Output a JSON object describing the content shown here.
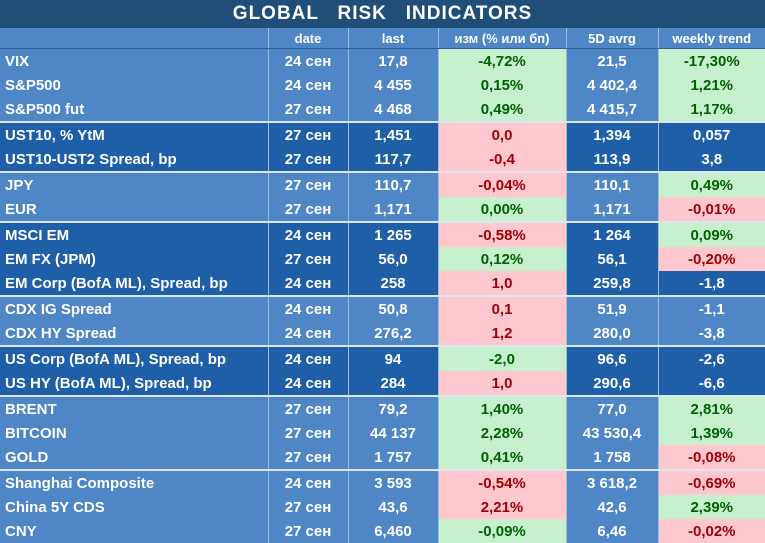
{
  "title": "GLOBAL   RISK   INDICATORS",
  "headers": {
    "name": "",
    "date": "date",
    "last": "last",
    "change": "изм (% или бп)",
    "avg5d": "5D avrg",
    "weekly": "weekly trend"
  },
  "colors": {
    "positive_bg": "#c6efce",
    "positive_text": "#006100",
    "negative_bg": "#ffc7ce",
    "negative_text": "#9c0006",
    "title_bg": "#1f4e79"
  },
  "rows": [
    {
      "name": "VIX",
      "date": "24 сен",
      "last": "17,8",
      "change": "-4,72%",
      "change_sign": "pos",
      "avg5d": "21,5",
      "weekly": "-17,30%",
      "weekly_sign": "pos",
      "group": 1
    },
    {
      "name": "S&P500",
      "date": "24 сен",
      "last": "4 455",
      "change": "0,15%",
      "change_sign": "pos",
      "avg5d": "4 402,4",
      "weekly": "1,21%",
      "weekly_sign": "pos",
      "group": 1
    },
    {
      "name": "S&P500 fut",
      "date": "27 сен",
      "last": "4 468",
      "change": "0,49%",
      "change_sign": "pos",
      "avg5d": "4 415,7",
      "weekly": "1,17%",
      "weekly_sign": "pos",
      "group": 1
    },
    {
      "name": "UST10, % YtM",
      "date": "27 сен",
      "last": "1,451",
      "change": "0,0",
      "change_sign": "neg",
      "avg5d": "1,394",
      "weekly": "0,057",
      "weekly_sign": "none",
      "group": 2
    },
    {
      "name": "UST10-UST2 Spread, bp",
      "date": "27 сен",
      "last": "117,7",
      "change": "-0,4",
      "change_sign": "neg",
      "avg5d": "113,9",
      "weekly": "3,8",
      "weekly_sign": "none",
      "group": 2
    },
    {
      "name": "JPY",
      "date": "27 сен",
      "last": "110,7",
      "change": "-0,04%",
      "change_sign": "neg",
      "avg5d": "110,1",
      "weekly": "0,49%",
      "weekly_sign": "pos",
      "group": 1
    },
    {
      "name": "EUR",
      "date": "27 сен",
      "last": "1,171",
      "change": "0,00%",
      "change_sign": "pos",
      "avg5d": "1,171",
      "weekly": "-0,01%",
      "weekly_sign": "neg",
      "group": 1
    },
    {
      "name": "MSCI EM",
      "date": "24 сен",
      "last": "1 265",
      "change": "-0,58%",
      "change_sign": "neg",
      "avg5d": "1 264",
      "weekly": "0,09%",
      "weekly_sign": "pos",
      "group": 2
    },
    {
      "name": "EM FX (JPM)",
      "date": "27 сен",
      "last": "56,0",
      "change": "0,12%",
      "change_sign": "pos",
      "avg5d": "56,1",
      "weekly": "-0,20%",
      "weekly_sign": "neg",
      "group": 2
    },
    {
      "name": "EM Corp (BofA ML), Spread, bp",
      "date": "24 сен",
      "last": "258",
      "change": "1,0",
      "change_sign": "neg",
      "avg5d": "259,8",
      "weekly": "-1,8",
      "weekly_sign": "none",
      "group": 2
    },
    {
      "name": "CDX IG Spread",
      "date": "24 сен",
      "last": "50,8",
      "change": "0,1",
      "change_sign": "neg",
      "avg5d": "51,9",
      "weekly": "-1,1",
      "weekly_sign": "none",
      "group": 1
    },
    {
      "name": "CDX HY Spread",
      "date": "24 сен",
      "last": "276,2",
      "change": "1,2",
      "change_sign": "neg",
      "avg5d": "280,0",
      "weekly": "-3,8",
      "weekly_sign": "none",
      "group": 1
    },
    {
      "name": "US Corp (BofA ML), Spread, bp",
      "date": "24 сен",
      "last": "94",
      "change": "-2,0",
      "change_sign": "pos",
      "avg5d": "96,6",
      "weekly": "-2,6",
      "weekly_sign": "none",
      "group": 2
    },
    {
      "name": "US HY (BofA ML), Spread, bp",
      "date": "24 сен",
      "last": "284",
      "change": "1,0",
      "change_sign": "neg",
      "avg5d": "290,6",
      "weekly": "-6,6",
      "weekly_sign": "none",
      "group": 2
    },
    {
      "name": "BRENT",
      "date": "27 сен",
      "last": "79,2",
      "change": "1,40%",
      "change_sign": "pos",
      "avg5d": "77,0",
      "weekly": "2,81%",
      "weekly_sign": "pos",
      "group": 1
    },
    {
      "name": "BITCOIN",
      "date": "27 сен",
      "last": "44 137",
      "change": "2,28%",
      "change_sign": "pos",
      "avg5d": "43 530,4",
      "weekly": "1,39%",
      "weekly_sign": "pos",
      "group": 1
    },
    {
      "name": "GOLD",
      "date": "27 сен",
      "last": "1 757",
      "change": "0,41%",
      "change_sign": "pos",
      "avg5d": "1 758",
      "weekly": "-0,08%",
      "weekly_sign": "neg",
      "group": 1
    },
    {
      "name": "Shanghai Composite",
      "date": "24 сен",
      "last": "3 593",
      "change": "-0,54%",
      "change_sign": "neg",
      "avg5d": "3 618,2",
      "weekly": "-0,69%",
      "weekly_sign": "neg",
      "group": 1
    },
    {
      "name": "China 5Y CDS",
      "date": "27 сен",
      "last": "43,6",
      "change": "2,21%",
      "change_sign": "neg",
      "avg5d": "42,6",
      "weekly": "2,39%",
      "weekly_sign": "pos",
      "group": 1
    },
    {
      "name": "CNY",
      "date": "27 сен",
      "last": "6,460",
      "change": "-0,09%",
      "change_sign": "pos",
      "avg5d": "6,46",
      "weekly": "-0,02%",
      "weekly_sign": "neg",
      "group": 1
    }
  ]
}
